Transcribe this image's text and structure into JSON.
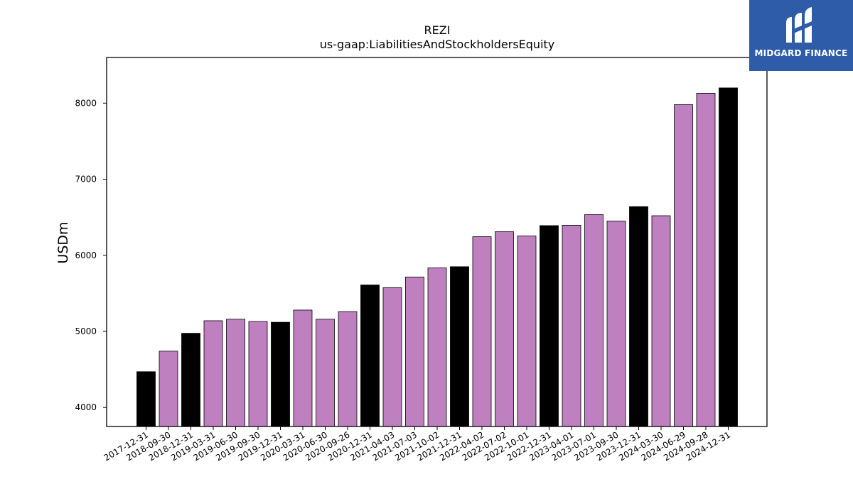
{
  "chart_data": {
    "type": "bar",
    "title": "REZI",
    "subtitle": "us-gaap:LiabilitiesAndStockholdersEquity",
    "xlabel": "",
    "ylabel": "USDm",
    "ylim": [
      3750,
      8600
    ],
    "yticks": [
      4000,
      5000,
      6000,
      7000,
      8000
    ],
    "grid": false,
    "colors": {
      "annual": "#000000",
      "quarterly": "#bf80bf",
      "edge": "#000000"
    },
    "categories": [
      "2017-12-31",
      "2018-09-30",
      "2018-12-31",
      "2019-03-31",
      "2019-06-30",
      "2019-09-30",
      "2019-12-31",
      "2020-03-31",
      "2020-06-30",
      "2020-09-26",
      "2020-12-31",
      "2021-04-03",
      "2021-07-03",
      "2021-10-02",
      "2021-12-31",
      "2022-04-02",
      "2022-07-02",
      "2022-10-01",
      "2022-12-31",
      "2023-04-01",
      "2023-07-01",
      "2023-09-30",
      "2023-12-31",
      "2024-03-30",
      "2024-06-29",
      "2024-09-28",
      "2024-12-31"
    ],
    "values": [
      4470,
      4740,
      4975,
      5140,
      5160,
      5130,
      5120,
      5280,
      5160,
      5260,
      5610,
      5575,
      5715,
      5835,
      5850,
      6245,
      6310,
      6255,
      6390,
      6395,
      6535,
      6450,
      6640,
      6520,
      7980,
      8130,
      8200
    ],
    "bar_kind": [
      "annual",
      "quarterly",
      "annual",
      "quarterly",
      "quarterly",
      "quarterly",
      "annual",
      "quarterly",
      "quarterly",
      "quarterly",
      "annual",
      "quarterly",
      "quarterly",
      "quarterly",
      "annual",
      "quarterly",
      "quarterly",
      "quarterly",
      "annual",
      "quarterly",
      "quarterly",
      "quarterly",
      "annual",
      "quarterly",
      "quarterly",
      "quarterly",
      "annual"
    ]
  },
  "logo": {
    "text": "MIDGARD FINANCE",
    "icon": "midgard-logo-icon",
    "background": "#2f5ca8"
  }
}
